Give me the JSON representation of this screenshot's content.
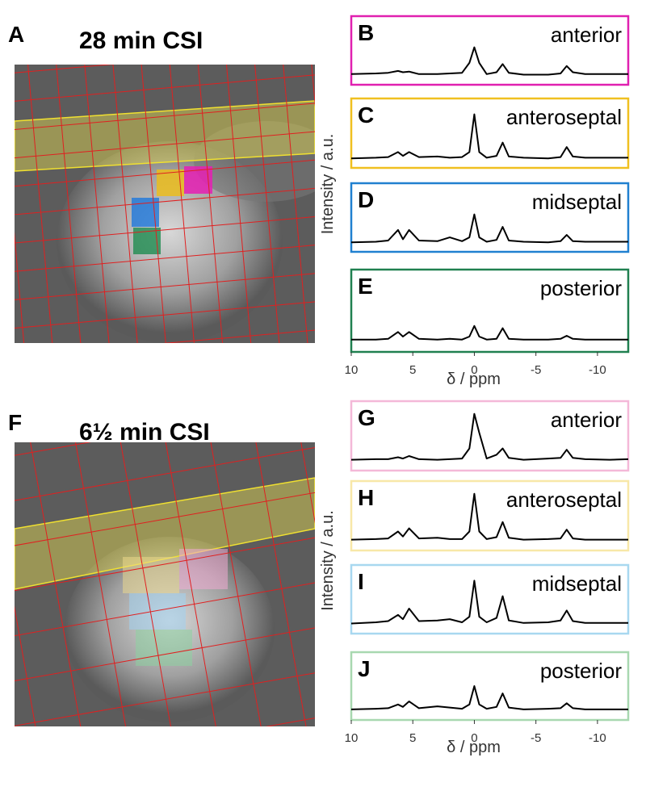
{
  "panels": [
    {
      "label": "A",
      "title": "28 min CSI"
    },
    {
      "label": "F",
      "title": "6½ min CSI"
    }
  ],
  "chart_data": [
    {
      "type": "line",
      "label": "B",
      "title": "anterior",
      "color": "#e020b0",
      "line_color": "#000000",
      "xlim": [
        10,
        -12.5
      ],
      "ylim": [
        0,
        1
      ],
      "x": [
        10,
        8,
        7,
        6.2,
        5.8,
        5.3,
        4.5,
        3,
        2,
        1,
        0.4,
        0,
        -0.4,
        -1,
        -1.8,
        -2.3,
        -2.8,
        -4,
        -6,
        -7,
        -7.5,
        -8,
        -9,
        -11,
        -12.5
      ],
      "values": [
        0.12,
        0.13,
        0.14,
        0.17,
        0.15,
        0.16,
        0.12,
        0.12,
        0.13,
        0.14,
        0.3,
        0.55,
        0.3,
        0.12,
        0.15,
        0.28,
        0.14,
        0.11,
        0.11,
        0.13,
        0.25,
        0.15,
        0.12,
        0.12,
        0.12
      ]
    },
    {
      "type": "line",
      "label": "C",
      "title": "anteroseptal",
      "color": "#f0c020",
      "line_color": "#000000",
      "xlim": [
        10,
        -12.5
      ],
      "ylim": [
        0,
        1
      ],
      "ylabel": "Intensity / a.u.",
      "x": [
        10,
        8,
        7,
        6.2,
        5.8,
        5.3,
        4.5,
        3,
        2,
        1,
        0.4,
        0,
        -0.4,
        -1,
        -1.8,
        -2.3,
        -2.8,
        -4,
        -6,
        -7,
        -7.5,
        -8,
        -9,
        -11,
        -12.5
      ],
      "values": [
        0.1,
        0.11,
        0.12,
        0.2,
        0.14,
        0.2,
        0.12,
        0.13,
        0.11,
        0.12,
        0.2,
        0.8,
        0.2,
        0.11,
        0.14,
        0.35,
        0.13,
        0.11,
        0.1,
        0.12,
        0.28,
        0.13,
        0.11,
        0.11,
        0.11
      ]
    },
    {
      "type": "line",
      "label": "D",
      "title": "midseptal",
      "color": "#2080d0",
      "line_color": "#000000",
      "xlim": [
        10,
        -12.5
      ],
      "ylim": [
        0,
        1
      ],
      "x": [
        10,
        8,
        7,
        6.2,
        5.8,
        5.3,
        4.5,
        3,
        2,
        1,
        0.4,
        0,
        -0.4,
        -1,
        -1.8,
        -2.3,
        -2.8,
        -4,
        -6,
        -7,
        -7.5,
        -8,
        -9,
        -11,
        -12.5
      ],
      "values": [
        0.1,
        0.11,
        0.13,
        0.3,
        0.15,
        0.3,
        0.13,
        0.12,
        0.18,
        0.12,
        0.18,
        0.55,
        0.18,
        0.11,
        0.14,
        0.35,
        0.13,
        0.11,
        0.1,
        0.12,
        0.22,
        0.12,
        0.11,
        0.11,
        0.11
      ]
    },
    {
      "type": "line",
      "label": "E",
      "title": "posterior",
      "color": "#208050",
      "line_color": "#000000",
      "xlim": [
        10,
        -12.5
      ],
      "ylim": [
        0,
        1
      ],
      "xticks": [
        10,
        5,
        0,
        -5,
        -10
      ],
      "xlabel": "δ / ppm",
      "x": [
        10,
        8,
        7,
        6.2,
        5.8,
        5.3,
        4.5,
        3,
        2,
        1,
        0.4,
        0,
        -0.4,
        -1,
        -1.8,
        -2.3,
        -2.8,
        -4,
        -6,
        -7,
        -7.5,
        -8,
        -9,
        -11,
        -12.5
      ],
      "values": [
        0.12,
        0.12,
        0.13,
        0.22,
        0.16,
        0.22,
        0.13,
        0.12,
        0.13,
        0.12,
        0.16,
        0.3,
        0.16,
        0.12,
        0.13,
        0.27,
        0.13,
        0.12,
        0.12,
        0.13,
        0.17,
        0.13,
        0.12,
        0.12,
        0.12
      ]
    },
    {
      "type": "line",
      "label": "G",
      "title": "anterior",
      "color": "#f4b8d8",
      "line_color": "#000000",
      "xlim": [
        10,
        -12.5
      ],
      "ylim": [
        0,
        1
      ],
      "x": [
        10,
        8,
        7,
        6.2,
        5.8,
        5.3,
        4.5,
        3,
        2,
        1,
        0.4,
        0,
        -0.4,
        -1,
        -1.8,
        -2.3,
        -2.8,
        -4,
        -6,
        -7,
        -7.5,
        -8,
        -9,
        -11,
        -12.5
      ],
      "values": [
        0.12,
        0.13,
        0.13,
        0.16,
        0.14,
        0.18,
        0.13,
        0.12,
        0.13,
        0.14,
        0.3,
        0.85,
        0.55,
        0.14,
        0.2,
        0.3,
        0.15,
        0.12,
        0.14,
        0.15,
        0.28,
        0.15,
        0.13,
        0.12,
        0.13
      ]
    },
    {
      "type": "line",
      "label": "H",
      "title": "anteroseptal",
      "color": "#f8e8a8",
      "line_color": "#000000",
      "xlim": [
        10,
        -12.5
      ],
      "ylim": [
        0,
        1
      ],
      "ylabel": "Intensity / a.u.",
      "x": [
        10,
        8,
        7,
        6.2,
        5.8,
        5.3,
        4.5,
        3,
        2,
        1,
        0.4,
        0,
        -0.4,
        -1,
        -1.8,
        -2.3,
        -2.8,
        -4,
        -6,
        -7,
        -7.5,
        -8,
        -9,
        -11,
        -12.5
      ],
      "values": [
        0.12,
        0.13,
        0.14,
        0.25,
        0.17,
        0.3,
        0.14,
        0.15,
        0.13,
        0.13,
        0.25,
        0.85,
        0.25,
        0.13,
        0.16,
        0.4,
        0.15,
        0.12,
        0.13,
        0.14,
        0.28,
        0.14,
        0.12,
        0.12,
        0.12
      ]
    },
    {
      "type": "line",
      "label": "I",
      "title": "midseptal",
      "color": "#a8d8f0",
      "line_color": "#000000",
      "xlim": [
        10,
        -12.5
      ],
      "ylim": [
        0,
        1
      ],
      "x": [
        10,
        8,
        7,
        6.2,
        5.8,
        5.3,
        4.5,
        3,
        2,
        1,
        0.4,
        0,
        -0.4,
        -1,
        -1.8,
        -2.3,
        -2.8,
        -4,
        -6,
        -7,
        -7.5,
        -8,
        -9,
        -11,
        -12.5
      ],
      "values": [
        0.11,
        0.13,
        0.15,
        0.25,
        0.18,
        0.35,
        0.15,
        0.16,
        0.18,
        0.13,
        0.22,
        0.8,
        0.22,
        0.13,
        0.2,
        0.55,
        0.16,
        0.12,
        0.13,
        0.16,
        0.32,
        0.15,
        0.12,
        0.12,
        0.12
      ]
    },
    {
      "type": "line",
      "label": "J",
      "title": "posterior",
      "color": "#a8d8b0",
      "line_color": "#000000",
      "xlim": [
        10,
        -12.5
      ],
      "ylim": [
        0,
        1
      ],
      "xticks": [
        10,
        5,
        0,
        -5,
        -10
      ],
      "xlabel": "δ / ppm",
      "x": [
        10,
        8,
        7,
        6.2,
        5.8,
        5.3,
        4.5,
        3,
        2,
        1,
        0.4,
        0,
        -0.4,
        -1,
        -1.8,
        -2.3,
        -2.8,
        -4,
        -6,
        -7,
        -7.5,
        -8,
        -9,
        -11,
        -12.5
      ],
      "values": [
        0.12,
        0.13,
        0.14,
        0.2,
        0.16,
        0.25,
        0.14,
        0.17,
        0.15,
        0.13,
        0.2,
        0.5,
        0.2,
        0.13,
        0.16,
        0.38,
        0.15,
        0.12,
        0.13,
        0.14,
        0.22,
        0.14,
        0.12,
        0.12,
        0.12
      ]
    }
  ]
}
